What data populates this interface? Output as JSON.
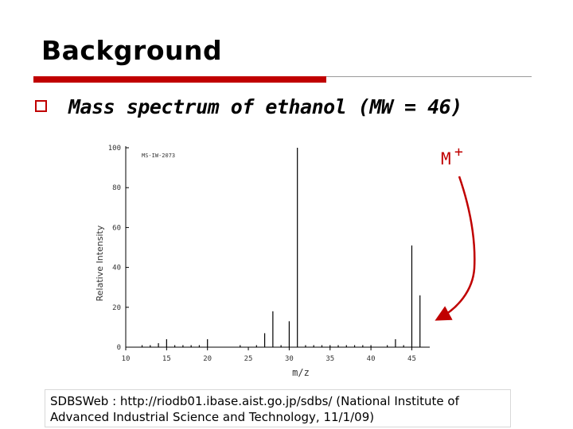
{
  "slide": {
    "title": "Background",
    "bullet": "Mass spectrum of ethanol (MW = 46)",
    "citation": "SDBSWeb : http://riodb01.ibase.aist.go.jp/sdbs/ (National Institute of Advanced Industrial Science and Technology, 11/1/09)",
    "annotation_label": "M",
    "annotation_sup": "+",
    "colors": {
      "accent": "#c00000",
      "rule": "#9a9a9a"
    }
  },
  "chart_data": {
    "type": "bar",
    "title": "",
    "xlabel": "m/z",
    "ylabel": "Relative Intensity",
    "code": "MS-IW-2073",
    "xlim": [
      10,
      47
    ],
    "ylim": [
      0,
      100
    ],
    "xticks": [
      10,
      15,
      20,
      25,
      30,
      35,
      40,
      45
    ],
    "yticks": [
      0,
      20,
      40,
      60,
      80,
      100
    ],
    "grid": false,
    "series": [
      {
        "x": [
          12,
          13,
          14,
          15,
          16,
          17,
          18,
          19,
          20,
          24,
          26,
          27,
          28,
          29,
          30,
          31,
          32,
          33,
          34,
          35,
          36,
          37,
          38,
          39,
          40,
          42,
          43,
          44,
          45,
          46
        ],
        "values": [
          1,
          1,
          2,
          4,
          1,
          1,
          1,
          1,
          4,
          1,
          1,
          7,
          18,
          1,
          13,
          100,
          1,
          1,
          1,
          1,
          1,
          1,
          1,
          1,
          1,
          1,
          4,
          1,
          51,
          26
        ]
      }
    ]
  }
}
